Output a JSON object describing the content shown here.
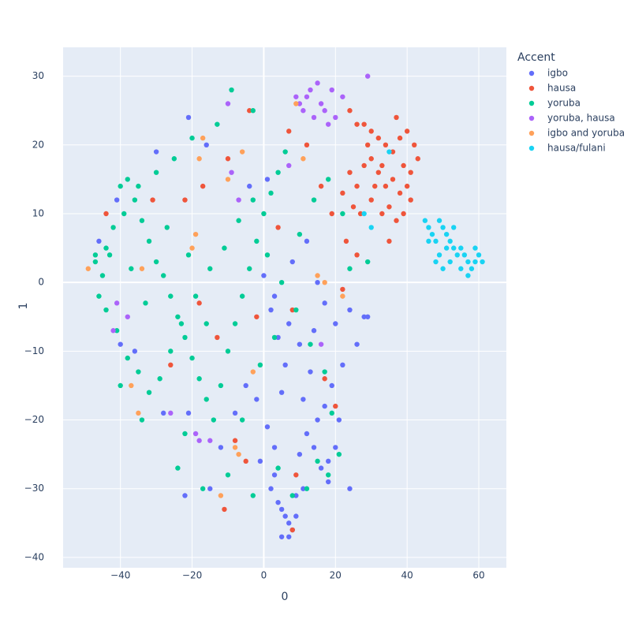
{
  "chart_data": {
    "type": "scatter",
    "xlabel": "0",
    "ylabel": "1",
    "legend_title": "Accent",
    "legend": "right",
    "grid": true,
    "xlim": [
      -56,
      67.7
    ],
    "ylim": [
      -41.5,
      34.2
    ],
    "xticks": [
      {
        "value": -40,
        "label": "−40"
      },
      {
        "value": -20,
        "label": "−20"
      },
      0,
      20,
      40,
      60
    ],
    "yticks": [
      {
        "value": -40,
        "label": "−40"
      },
      {
        "value": -30,
        "label": "−30"
      },
      {
        "value": -20,
        "label": "−20"
      },
      {
        "value": -10,
        "label": "−10"
      },
      0,
      10,
      20,
      30
    ],
    "series": [
      {
        "name": "igbo",
        "color": "#636efa",
        "x": [
          2,
          4,
          6,
          8,
          7,
          5,
          3,
          9,
          10,
          12,
          14,
          16,
          18,
          15,
          17,
          19,
          11,
          13,
          6,
          4,
          2,
          0,
          8,
          12,
          15,
          20,
          24,
          26,
          28,
          22,
          21,
          20,
          18,
          1,
          -2,
          -5,
          -8,
          -12,
          -15,
          -22,
          -21,
          -28,
          -36,
          -40,
          -41,
          -46,
          -30,
          -21,
          -16,
          -4,
          1,
          5,
          9,
          7,
          11,
          3,
          -1,
          24,
          5,
          10,
          14,
          17,
          7,
          3,
          29
        ],
        "y": [
          -30,
          -32,
          -34,
          -36,
          -35,
          -33,
          -28,
          -31,
          -25,
          -22,
          -24,
          -27,
          -29,
          -20,
          -18,
          -15,
          -17,
          -13,
          -12,
          -8,
          -4,
          1,
          3,
          6,
          0,
          -6,
          -4,
          -9,
          -5,
          -12,
          -20,
          -24,
          -26,
          -21,
          -17,
          -15,
          -19,
          -24,
          -30,
          -31,
          -19,
          -19,
          -10,
          -9,
          12,
          6,
          19,
          24,
          20,
          14,
          15,
          -37,
          -34,
          -37,
          -30,
          -24,
          -26,
          -30,
          -16,
          -9,
          -7,
          -3,
          -6,
          -2,
          -5
        ]
      },
      {
        "name": "hausa",
        "color": "#EF553B",
        "x": [
          24,
          26,
          28,
          30,
          32,
          34,
          36,
          38,
          40,
          42,
          37,
          39,
          41,
          43,
          40,
          38,
          36,
          34,
          32,
          30,
          28,
          26,
          24,
          22,
          25,
          27,
          30,
          33,
          35,
          37,
          39,
          41,
          29,
          31,
          33,
          35,
          26,
          23,
          19,
          16,
          12,
          7,
          -4,
          -10,
          -17,
          -22,
          -31,
          -44,
          8,
          17,
          20,
          -8,
          -5,
          9,
          8,
          -11,
          -18,
          -2,
          4,
          22,
          -13,
          -26
        ],
        "y": [
          25,
          23,
          23,
          22,
          21,
          20,
          19,
          21,
          22,
          20,
          24,
          17,
          16,
          18,
          14,
          13,
          15,
          14,
          16,
          18,
          17,
          14,
          16,
          13,
          11,
          10,
          12,
          10,
          11,
          9,
          10,
          12,
          20,
          14,
          17,
          6,
          4,
          6,
          10,
          14,
          20,
          22,
          25,
          18,
          14,
          12,
          12,
          10,
          -4,
          -14,
          -18,
          -23,
          -26,
          -28,
          -36,
          -33,
          -3,
          -5,
          8,
          -1,
          -8,
          -12
        ]
      },
      {
        "name": "yoruba",
        "color": "#00cc96",
        "x": [
          -47,
          -45,
          -44,
          -42,
          -40,
          -38,
          -36,
          -34,
          -32,
          -30,
          -28,
          -26,
          -24,
          -22,
          -20,
          -18,
          -16,
          -14,
          -12,
          -10,
          -8,
          -6,
          -4,
          -2,
          0,
          2,
          4,
          6,
          -9,
          -3,
          -13,
          -20,
          -25,
          -30,
          -35,
          -39,
          -43,
          -46,
          -44,
          -41,
          -38,
          -35,
          -32,
          -29,
          -26,
          -23,
          -19,
          -15,
          -11,
          -7,
          -3,
          1,
          5,
          9,
          13,
          17,
          19,
          15,
          18,
          21,
          12,
          8,
          4,
          -3,
          -10,
          -17,
          -24,
          -22,
          -34,
          -40,
          -47,
          22,
          24,
          29,
          -6,
          -1,
          3,
          10,
          14,
          18,
          -27,
          -21,
          -16,
          -33,
          -37
        ],
        "y": [
          3,
          1,
          5,
          8,
          14,
          15,
          12,
          9,
          6,
          3,
          1,
          -2,
          -5,
          -8,
          -11,
          -14,
          -17,
          -20,
          -15,
          -10,
          -6,
          -2,
          2,
          6,
          10,
          13,
          16,
          19,
          28,
          25,
          23,
          21,
          18,
          16,
          14,
          10,
          4,
          -2,
          -4,
          -7,
          -11,
          -13,
          -16,
          -14,
          -10,
          -6,
          -2,
          2,
          5,
          9,
          12,
          4,
          0,
          -4,
          -9,
          -13,
          -19,
          -26,
          -28,
          -25,
          -30,
          -31,
          -27,
          -31,
          -28,
          -30,
          -27,
          -22,
          -20,
          -15,
          4,
          10,
          2,
          3,
          -20,
          -12,
          -8,
          7,
          12,
          15,
          8,
          4,
          -6,
          -3,
          2
        ]
      },
      {
        "name": "yoruba, hausa",
        "color": "#ab63fa",
        "x": [
          9,
          10,
          11,
          12,
          13,
          15,
          16,
          17,
          19,
          20,
          22,
          14,
          18,
          29,
          -10,
          -19,
          -18,
          -26,
          -41,
          -42,
          -38,
          -9,
          -7,
          7,
          16,
          -15
        ],
        "y": [
          27,
          26,
          25,
          27,
          28,
          29,
          26,
          25,
          28,
          24,
          27,
          24,
          23,
          30,
          26,
          -22,
          -23,
          -19,
          -3,
          -7,
          -5,
          16,
          12,
          17,
          -9,
          -23
        ]
      },
      {
        "name": "igbo and yoruba",
        "color": "#FFA15A",
        "x": [
          -49,
          -37,
          -35,
          -34,
          -20,
          -19,
          -18,
          -17,
          -10,
          -8,
          -7,
          -3,
          9,
          11,
          15,
          17,
          22,
          -12,
          -6
        ],
        "y": [
          2,
          -15,
          -19,
          2,
          5,
          7,
          18,
          21,
          15,
          -24,
          -25,
          -13,
          26,
          18,
          1,
          0,
          -2,
          -31,
          19
        ]
      },
      {
        "name": "hausa/fulani",
        "color": "#19d3f3",
        "x": [
          45,
          46,
          47,
          48,
          49,
          50,
          51,
          52,
          53,
          54,
          55,
          56,
          57,
          58,
          59,
          60,
          61,
          59,
          57,
          55,
          52,
          50,
          49,
          48,
          51,
          53,
          46,
          30,
          35,
          28
        ],
        "y": [
          9,
          8,
          7,
          6,
          9,
          8,
          7,
          6,
          5,
          4,
          5,
          4,
          3,
          2,
          3,
          4,
          3,
          5,
          1,
          2,
          3,
          2,
          4,
          3,
          5,
          8,
          6,
          8,
          19,
          10
        ]
      }
    ]
  }
}
